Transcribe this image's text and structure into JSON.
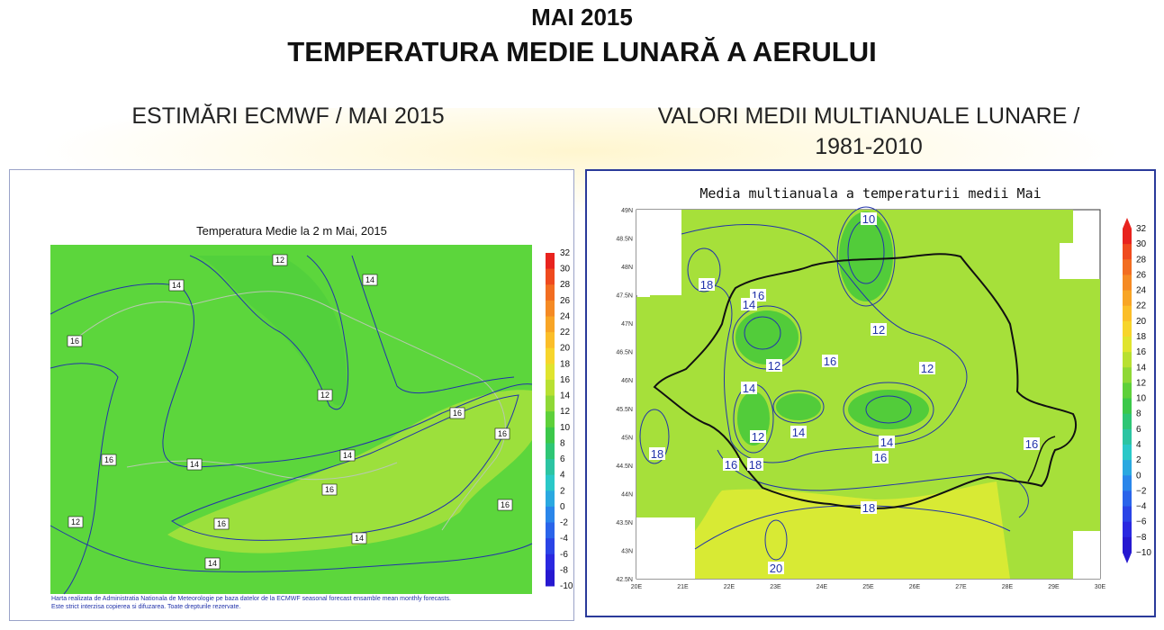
{
  "header": {
    "title_line1": "MAI 2015",
    "title_line2": "TEMPERATURA MEDIE LUNARĂ A AERULUI"
  },
  "left_panel": {
    "heading": "ESTIMĂRI ECMWF / MAI 2015",
    "map_title": "Temperatura Medie la 2 m Mai, 2015",
    "contour_labels": [
      "12",
      "12",
      "14",
      "14",
      "16",
      "16",
      "16",
      "16",
      "16",
      "16",
      "16",
      "14",
      "14",
      "14",
      "12",
      "14"
    ],
    "colorbar_ticks": [
      "32",
      "30",
      "28",
      "26",
      "24",
      "22",
      "20",
      "18",
      "16",
      "14",
      "12",
      "10",
      "8",
      "6",
      "4",
      "2",
      "0",
      "-2",
      "-4",
      "-6",
      "-8",
      "-10"
    ],
    "footnote_line1": "Harta realizata de Administratia Nationala de Meteorologie pe baza datelor de la ECMWF seasonal forecast ensamble mean monthly forecasts.",
    "footnote_line2": "Este strict interzisa copierea si difuzarea. Toate drepturile rezervate."
  },
  "right_panel": {
    "heading_line1": "VALORI MEDII MULTIANUALE LUNARE /",
    "heading_line2": "1981-2010",
    "map_title": "Media multianuala a temperaturii medii Mai",
    "lat_ticks": [
      "49N",
      "48.5N",
      "48N",
      "47.5N",
      "47N",
      "46.5N",
      "46N",
      "45.5N",
      "45N",
      "44.5N",
      "44N",
      "43.5N",
      "43N",
      "42.5N"
    ],
    "lon_ticks": [
      "20E",
      "21E",
      "22E",
      "23E",
      "24E",
      "25E",
      "26E",
      "27E",
      "28E",
      "29E",
      "30E"
    ],
    "contour_labels": [
      "10",
      "18",
      "16",
      "14",
      "12",
      "12",
      "16",
      "12",
      "14",
      "14",
      "12",
      "14",
      "16",
      "18",
      "16",
      "18",
      "16",
      "18",
      "20"
    ],
    "colorbar_ticks": [
      "32",
      "30",
      "28",
      "26",
      "24",
      "22",
      "20",
      "18",
      "16",
      "14",
      "12",
      "10",
      "8",
      "6",
      "4",
      "2",
      "0",
      "−2",
      "−4",
      "−6",
      "−8",
      "−10"
    ]
  },
  "colors": {
    "left_base": "#5cd63c",
    "left_warm": "#9ce03c",
    "right_base": "#a6e03a",
    "right_cool": "#52cc3a",
    "right_warm": "#d8ea34",
    "contour": "#2233aa",
    "border": "#111111"
  }
}
